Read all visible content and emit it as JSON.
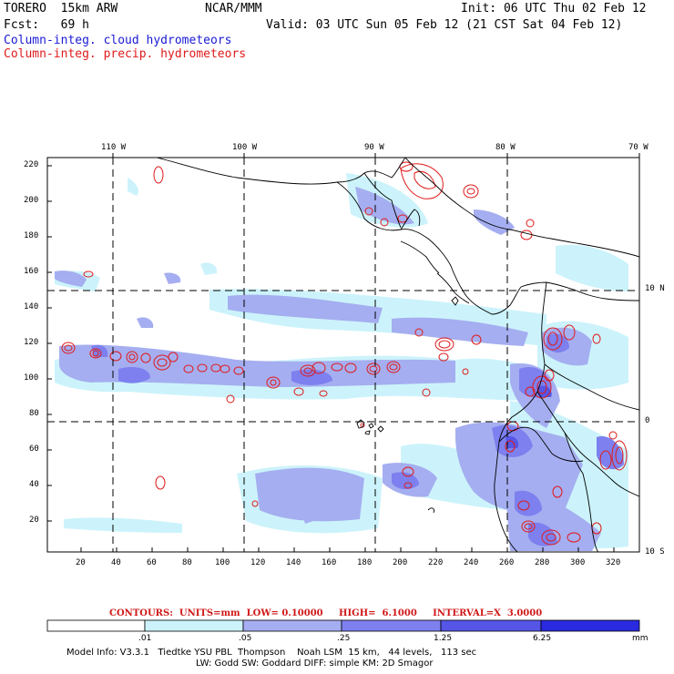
{
  "header": {
    "model": "TORERO  15km ARW",
    "org": "NCAR/MMM",
    "init": "Init: 06 UTC Thu 02 Feb 12",
    "fcst": "Fcst:   69 h",
    "valid": "Valid: 03 UTC Sun 05 Feb 12 (21 CST Sat 04 Feb 12)",
    "field1": "Column-integ. cloud hydrometeors",
    "field2": "Column-integ. precip. hydrometeors"
  },
  "colors": {
    "field1": "#1a1ad6",
    "field2": "#e01a1a",
    "legend": [
      "#ffffff",
      "#ccf3fb",
      "#a5aef0",
      "#7d80ee",
      "#5555e6",
      "#2a2ae0"
    ]
  },
  "map": {
    "lon_labels": [
      "110 W",
      "100 W",
      "90 W",
      "80 W",
      "70 W"
    ],
    "lat_labels": [
      "10 N",
      "0",
      "10 S"
    ],
    "y_ticks": [
      "220",
      "200",
      "180",
      "160",
      "140",
      "120",
      "100",
      "80",
      "60",
      "40",
      "20"
    ],
    "x_ticks": [
      "20",
      "40",
      "60",
      "80",
      "100",
      "120",
      "140",
      "160",
      "180",
      "200",
      "220",
      "240",
      "260",
      "280",
      "300",
      "320"
    ]
  },
  "contour_info": "CONTOURS:  UNITS=mm  LOW= 0.10000     HIGH=  6.1000     INTERVAL=X  3.0000",
  "legend": {
    "labels": [
      ".01",
      ".05",
      ".25",
      "1.25",
      "6.25"
    ],
    "unit": "mm"
  },
  "footer": {
    "line1": "Model Info: V3.3.1   Tiedtke YSU PBL  Thompson    Noah LSM  15 km,   44 levels,   113 sec",
    "line2": "LW: Godd SW: Goddard DIFF: simple KM: 2D Smagor"
  }
}
